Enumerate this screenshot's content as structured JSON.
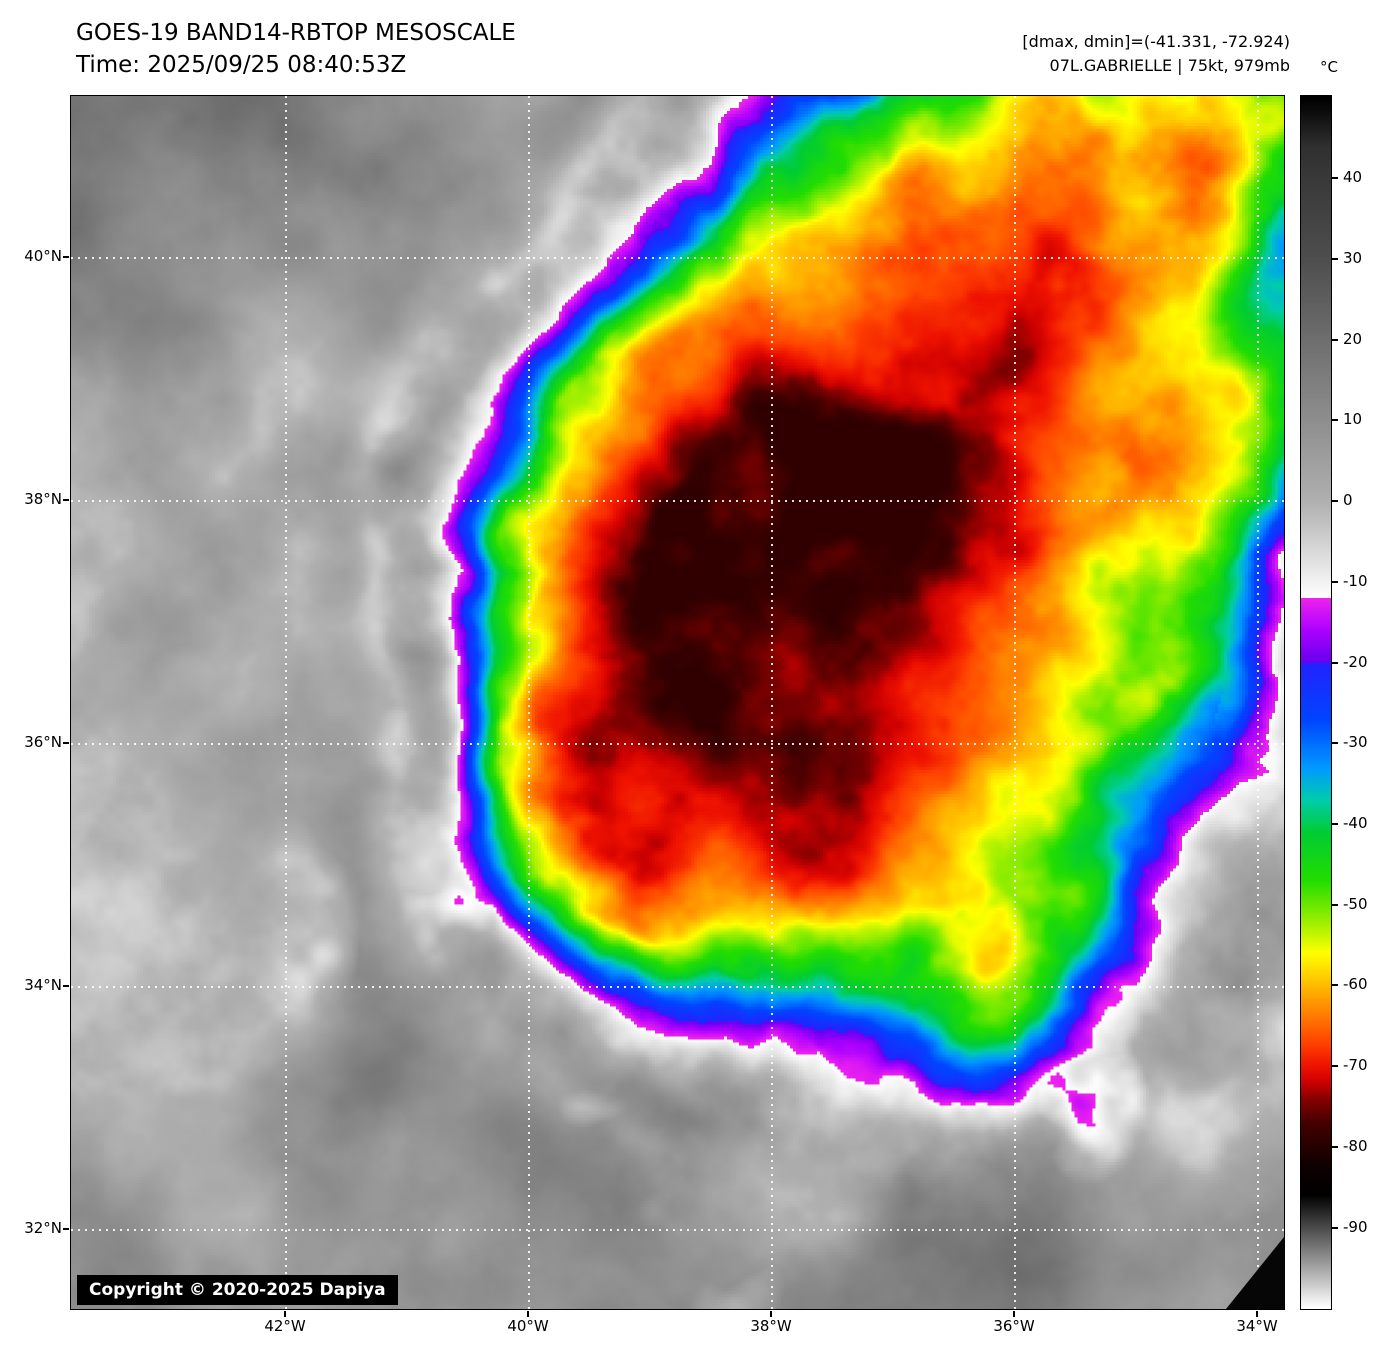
{
  "header": {
    "title": "GOES-19 BAND14-RBTOP MESOSCALE",
    "time": "Time: 2025/09/25 08:40:53Z",
    "range_readout": "[dmax, dmin]=(-41.331, -72.924)",
    "storm_info": "07L.GABRIELLE | 75kt, 979mb"
  },
  "colorbar": {
    "unit": "°C",
    "ticks": [
      40,
      30,
      20,
      10,
      0,
      -10,
      -20,
      -30,
      -40,
      -50,
      -60,
      -70,
      -80,
      -90
    ]
  },
  "map": {
    "lat_lines": [
      {
        "label": "40°N",
        "value": 40
      },
      {
        "label": "38°N",
        "value": 38
      },
      {
        "label": "36°N",
        "value": 36
      },
      {
        "label": "34°N",
        "value": 34
      },
      {
        "label": "32°N",
        "value": 32
      }
    ],
    "lon_lines": [
      {
        "label": "42°W",
        "value": 42
      },
      {
        "label": "40°W",
        "value": 40
      },
      {
        "label": "38°W",
        "value": 38
      },
      {
        "label": "36°W",
        "value": 36
      },
      {
        "label": "34°W",
        "value": 34
      }
    ],
    "copyright": "Copyright © 2020-2025 Dapiya"
  }
}
